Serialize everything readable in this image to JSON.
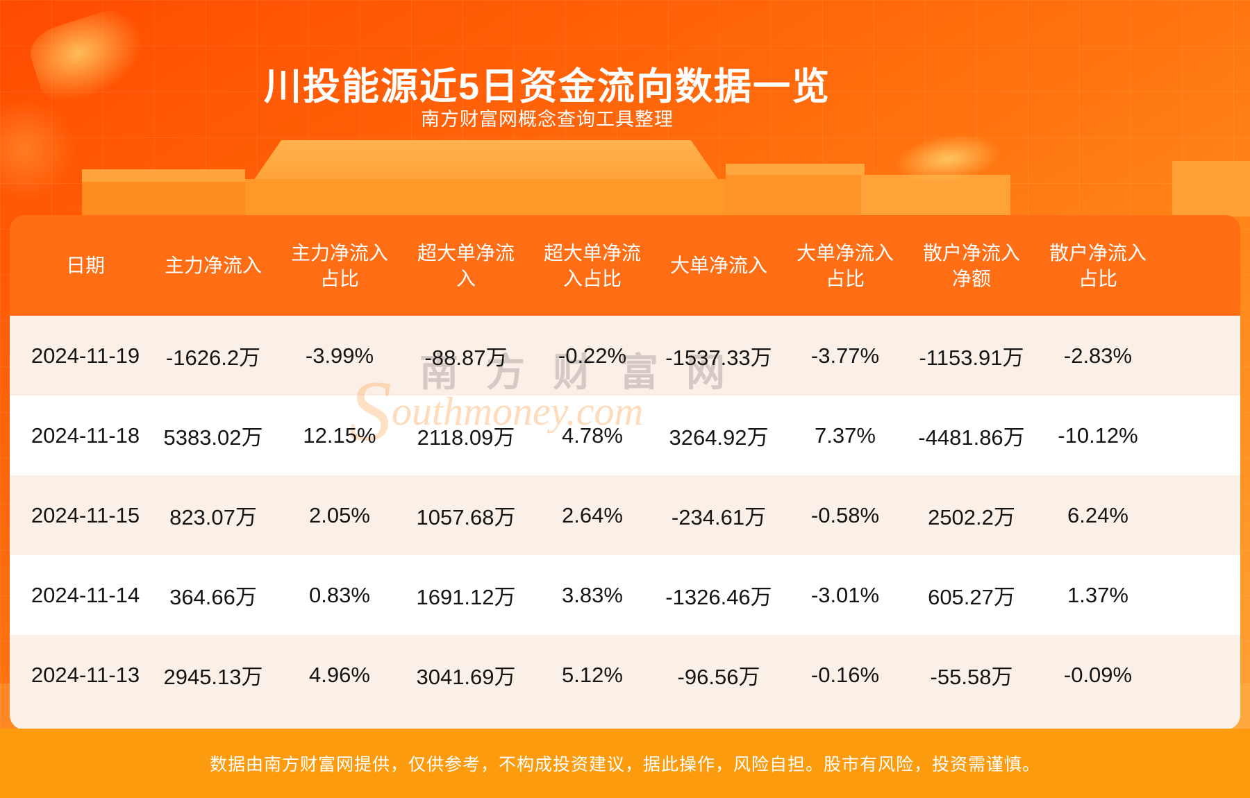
{
  "page": {
    "title": "川投能源近5日资金流向数据一览",
    "subtitle": "南方财富网概念查询工具整理",
    "footer": "数据由南方财富网提供，仅供参考，不构成投资建议，据此操作，风险自担。股市有风险，投资需谨慎。"
  },
  "watermark": {
    "cn": "南方财富网",
    "en_initial": "S",
    "en_rest": "outhmoney.com"
  },
  "colors": {
    "bg_top": "#ff4b00",
    "bg_bottom": "#ffa53a",
    "header_band": "#ff6d15",
    "row_beige": "#fbf0e7",
    "row_white": "#ffffff",
    "footer_band": "#fd9b0e",
    "text_dark": "#141414",
    "text_white": "#ffffff"
  },
  "table": {
    "header_lines": [
      [
        "日期"
      ],
      [
        "主力净流入"
      ],
      [
        "主力净流入",
        "占比"
      ],
      [
        "超大单净流",
        "入"
      ],
      [
        "超大单净流",
        "入占比"
      ],
      [
        "大单净流入"
      ],
      [
        "大单净流入",
        "占比"
      ],
      [
        "散户净流入",
        "净额"
      ],
      [
        "散户净流入",
        "占比"
      ]
    ]
  },
  "chart_data": {
    "type": "table",
    "title": "川投能源近5日资金流向数据一览",
    "columns": [
      "日期",
      "主力净流入",
      "主力净流入占比",
      "超大单净流入",
      "超大单净流入占比",
      "大单净流入",
      "大单净流入占比",
      "散户净流入净额",
      "散户净流入占比"
    ],
    "rows": [
      [
        "2024-11-19",
        "-1626.2万",
        "-3.99%",
        "-88.87万",
        "-0.22%",
        "-1537.33万",
        "-3.77%",
        "-1153.91万",
        "-2.83%"
      ],
      [
        "2024-11-18",
        "5383.02万",
        "12.15%",
        "2118.09万",
        "4.78%",
        "3264.92万",
        "7.37%",
        "-4481.86万",
        "-10.12%"
      ],
      [
        "2024-11-15",
        "823.07万",
        "2.05%",
        "1057.68万",
        "2.64%",
        "-234.61万",
        "-0.58%",
        "2502.2万",
        "6.24%"
      ],
      [
        "2024-11-14",
        "364.66万",
        "0.83%",
        "1691.12万",
        "3.83%",
        "-1326.46万",
        "-3.01%",
        "605.27万",
        "1.37%"
      ],
      [
        "2024-11-13",
        "2945.13万",
        "4.96%",
        "3041.69万",
        "5.12%",
        "-96.56万",
        "-0.16%",
        "-55.58万",
        "-0.09%"
      ]
    ]
  }
}
